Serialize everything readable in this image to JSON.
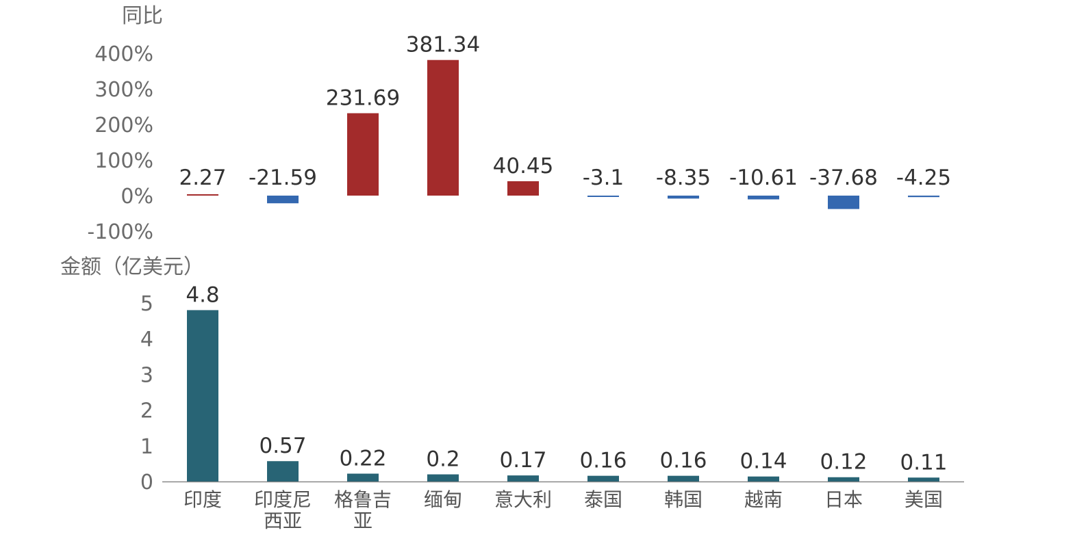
{
  "chart_data": [
    {
      "type": "bar",
      "ylabel": "同比",
      "categories": [
        "印度",
        "印度尼西亚",
        "格鲁吉亚",
        "缅甸",
        "意大利",
        "泰国",
        "韩国",
        "越南",
        "日本",
        "美国"
      ],
      "values": [
        2.27,
        -21.59,
        231.69,
        381.34,
        40.45,
        -3.1,
        -8.35,
        -10.61,
        -37.68,
        -4.25
      ],
      "value_labels": [
        "2.27",
        "-21.59",
        "231.69",
        "381.34",
        "40.45",
        "-3.1",
        "-8.35",
        "-10.61",
        "-37.68",
        "-4.25"
      ],
      "ylim": [
        -100,
        400
      ],
      "yticks": [
        "400%",
        "300%",
        "200%",
        "100%",
        "0%",
        "-100%"
      ],
      "ytick_values": [
        400,
        300,
        200,
        100,
        0,
        -100
      ],
      "colors": {
        "positive": "#a32b2b",
        "negative": "#3468b0"
      },
      "grid": false
    },
    {
      "type": "bar",
      "ylabel": "金额（亿美元）",
      "categories": [
        "印度",
        "印度尼西亚",
        "格鲁吉亚",
        "缅甸",
        "意大利",
        "泰国",
        "韩国",
        "越南",
        "日本",
        "美国"
      ],
      "category_labels": [
        [
          "印度"
        ],
        [
          "印度尼",
          "西亚"
        ],
        [
          "格鲁吉",
          "亚"
        ],
        [
          "缅甸"
        ],
        [
          "意大利"
        ],
        [
          "泰国"
        ],
        [
          "韩国"
        ],
        [
          "越南"
        ],
        [
          "日本"
        ],
        [
          "美国"
        ]
      ],
      "values": [
        4.8,
        0.57,
        0.22,
        0.2,
        0.17,
        0.16,
        0.16,
        0.14,
        0.12,
        0.11
      ],
      "value_labels": [
        "4.8",
        "0.57",
        "0.22",
        "0.2",
        "0.17",
        "0.16",
        "0.16",
        "0.14",
        "0.12",
        "0.11"
      ],
      "ylim": [
        0,
        5
      ],
      "yticks": [
        "5",
        "4",
        "3",
        "2",
        "1",
        "0"
      ],
      "ytick_values": [
        5,
        4,
        3,
        2,
        1,
        0
      ],
      "colors": {
        "bar": "#286475"
      },
      "grid": false
    }
  ]
}
